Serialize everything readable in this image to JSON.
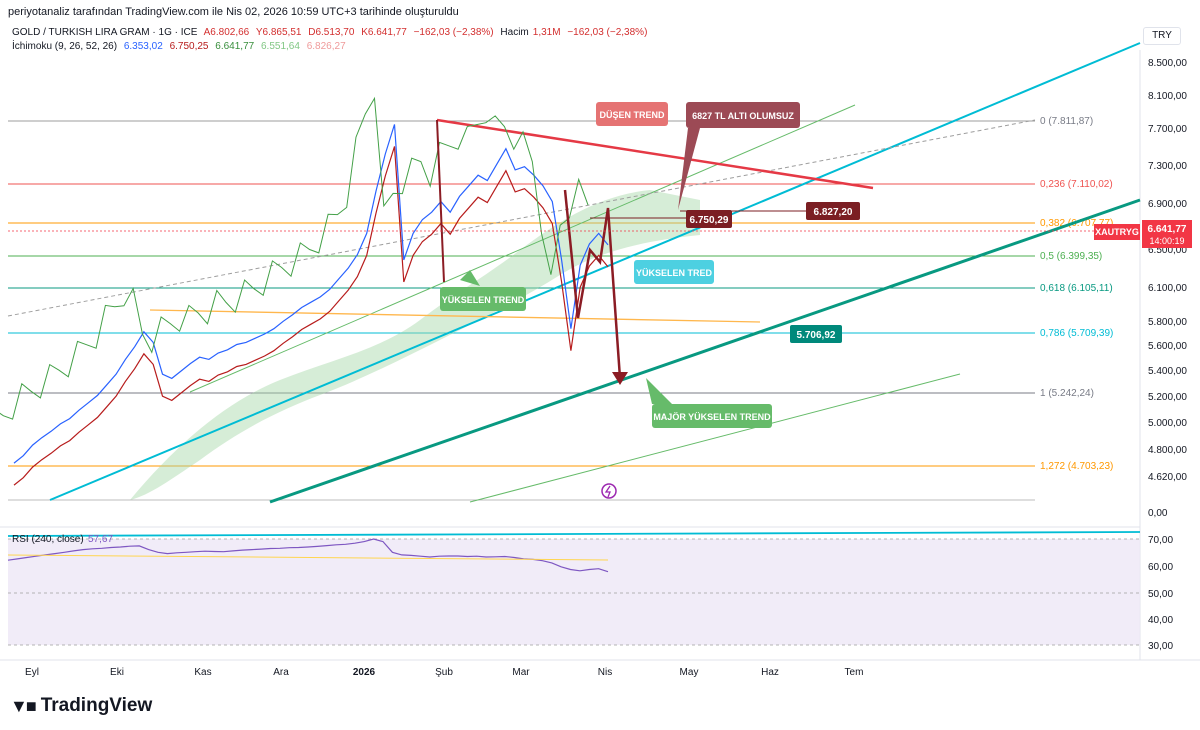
{
  "top_caption": "periyotanaliz tarafından TradingView.com ile Nis 02, 2026 10:59 UTC+3 tarihinde oluşturuldu",
  "symbol_line": {
    "name": "GOLD / TURKISH LIRA GRAM · 1G · ICE",
    "open": "A6.802,66",
    "high": "Y6.865,51",
    "low": "D6.513,70",
    "close": "K6.641,77",
    "change": "−162,03 (−2,38%)",
    "volume_label": "Hacim",
    "volume": "1,31M",
    "volume_change": "−162,03 (−2,38%)"
  },
  "ichimoku_line": {
    "label": "İchimoku (9, 26, 52, 26)",
    "v1": "6.353,02",
    "v2": "6.750,25",
    "v3": "6.641,77",
    "v4": "6.551,64",
    "v5": "6.826,27"
  },
  "currency_button": "TRY",
  "brand": "TradingView",
  "chart_data": [
    {
      "type": "line",
      "name": "price",
      "price_axis_labels": [
        "8.500,00",
        "8.100,00",
        "7.700,00",
        "7.300,00",
        "6.900,00",
        "6.500,00",
        "6.100,00",
        "5.800,00",
        "5.600,00",
        "5.400,00",
        "5.200,00",
        "5.000,00",
        "4.800,00",
        "4.620,00",
        "0,00"
      ],
      "x_axis_labels": [
        "Eyl",
        "Eki",
        "Kas",
        "Ara",
        "2026",
        "Şub",
        "Mar",
        "Nis",
        "May",
        "Haz",
        "Tem"
      ],
      "fib_levels": [
        {
          "label": "0 (7.811,87)",
          "value": 7811.87,
          "color": "#9e9e9e"
        },
        {
          "label": "0,236 (7.110,02)",
          "value": 7110.02,
          "color": "#ef5350"
        },
        {
          "label": "0,382 (6.707,77)",
          "value": 6707.77,
          "color": "#ff9800"
        },
        {
          "label": "0,5 (6.399,35)",
          "value": 6399.35,
          "color": "#4caf50"
        },
        {
          "label": "0,618 (6.105,11)",
          "value": 6105.11,
          "color": "#089981"
        },
        {
          "label": "0,786 (5.709,39)",
          "value": 5709.39,
          "color": "#00bcd4"
        },
        {
          "label": "1 (5.242,24)",
          "value": 5242.24,
          "color": "#787b86"
        },
        {
          "label": "1,272 (4.703,23)",
          "value": 4703.23,
          "color": "#ff9800"
        }
      ],
      "annotations": [
        {
          "text": "DÜŞEN TREND",
          "color": "#e57373"
        },
        {
          "text": "6827 TL ALTI OLUMSUZ",
          "color": "#8d3b45"
        },
        {
          "text": "YÜKSELEN TREND",
          "color": "#66bb6a"
        },
        {
          "text": "YÜKSELEN TRED",
          "color": "#4dd0e1"
        },
        {
          "text": "MAJÖR YÜKSELEN TREND",
          "color": "#66bb6a"
        }
      ],
      "price_tags": [
        {
          "text": "6.750,29",
          "color": "#7b1e23"
        },
        {
          "text": "6.827,20",
          "color": "#7b1e23"
        },
        {
          "text": "5.706,92",
          "color": "#00897b"
        }
      ],
      "last_price": {
        "symbol": "XAUTRYG",
        "price": "6.641,77",
        "countdown": "14:00:19",
        "color": "#f23645"
      },
      "series": [
        {
          "name": "price",
          "values": [
            4580,
            4650,
            4750,
            4820,
            4880,
            4950,
            5000,
            5080,
            5150,
            5220,
            5320,
            5420,
            5560,
            5680,
            5820,
            5720,
            5420,
            5380,
            5450,
            5520,
            5580,
            5560,
            5620,
            5650,
            5700,
            5720,
            5760,
            5800,
            5850,
            5920,
            5980,
            6050,
            6100,
            6150,
            6220,
            6320,
            6420,
            6550,
            6750,
            7150,
            7500,
            7780,
            6500,
            6750,
            6880,
            6950,
            7050,
            6950,
            7100,
            7200,
            7300,
            7250,
            7400,
            7550,
            7350,
            7380,
            7300,
            7200,
            7050,
            6500,
            5850,
            6450,
            6650,
            6750,
            6641
          ]
        }
      ]
    },
    {
      "type": "line",
      "name": "RSI",
      "title": "RSI (240, close)",
      "value_label": "57,67",
      "y_axis_labels": [
        "70,00",
        "60,00",
        "50,00",
        "40,00",
        "30,00"
      ],
      "ylim": [
        30,
        72
      ],
      "series": [
        {
          "name": "RSI",
          "values": [
            62,
            62.5,
            63,
            63.5,
            64,
            64.5,
            65,
            65.5,
            66,
            66.3,
            66.5,
            66.8,
            67,
            67.3,
            67.4,
            66,
            65,
            64.5,
            64.8,
            65,
            65.2,
            65.4,
            65.3,
            65.2,
            65.5,
            65.8,
            66,
            66.2,
            66.4,
            66.5,
            66.7,
            66.8,
            67,
            67.2,
            67.5,
            67.8,
            68,
            68.4,
            69,
            70,
            69,
            65,
            64,
            63.8,
            63.5,
            63.2,
            63.5,
            63.6,
            63.6,
            63.4,
            63.5,
            63.2,
            63.3,
            63.4,
            63,
            62.5,
            62.3,
            61.8,
            61,
            59.5,
            58.5,
            58,
            58.5,
            58.8,
            57.67
          ]
        }
      ]
    }
  ]
}
